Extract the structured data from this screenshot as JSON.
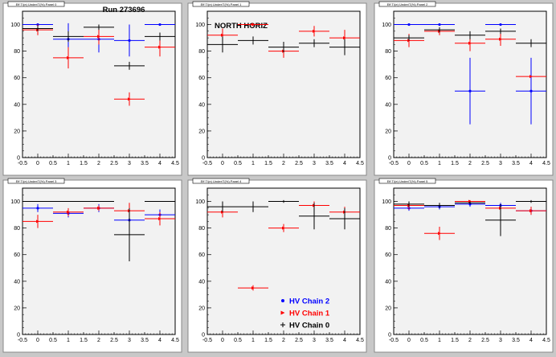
{
  "page": {
    "background": "#c8c8c8"
  },
  "colors": {
    "chain2": "#0000ff",
    "chain1": "#ff0000",
    "chain0": "#000000",
    "frame": "#ffffff",
    "plot_bg": "#f2f2f2"
  },
  "legend": {
    "entries": [
      {
        "label": "HV Chain 2",
        "color": "#0000ff",
        "marker": "circle"
      },
      {
        "label": "HV Chain 1",
        "color": "#ff0000",
        "marker": "arrow"
      },
      {
        "label": "HV Chain 0",
        "color": "#000000",
        "marker": "plus"
      }
    ]
  },
  "chart_data": [
    {
      "type": "scatter",
      "title_box": "Eff T/(e) Under/T(%) Panel 0",
      "annotation": "Run 273696",
      "xlim": [
        -0.5,
        4.5
      ],
      "ylim": [
        0,
        110
      ],
      "xticks": [
        "-0.5",
        "0",
        "0.5",
        "1",
        "1.5",
        "2",
        "2.5",
        "3",
        "3.5",
        "4",
        "4.5"
      ],
      "yticks": [
        "0",
        "20",
        "40",
        "60",
        "80",
        "100"
      ],
      "grid": false,
      "series": [
        {
          "color": "#0000ff",
          "points": [
            {
              "x": 0,
              "y": 100,
              "ey": 0
            },
            {
              "x": 1,
              "y": 89,
              "ey": 12
            },
            {
              "x": 2,
              "y": 89,
              "ey": 10
            },
            {
              "x": 3,
              "y": 88,
              "ey": 12
            },
            {
              "x": 4,
              "y": 100,
              "ey": 0
            }
          ]
        },
        {
          "color": "#ff0000",
          "points": [
            {
              "x": 0,
              "y": 96,
              "ey": 4
            },
            {
              "x": 1,
              "y": 75,
              "ey": 8
            },
            {
              "x": 2,
              "y": 91,
              "ey": 6
            },
            {
              "x": 3,
              "y": 44,
              "ey": 5
            },
            {
              "x": 4,
              "y": 83,
              "ey": 7
            }
          ]
        },
        {
          "color": "#000000",
          "points": [
            {
              "x": 0,
              "y": 97,
              "ey": 2
            },
            {
              "x": 1,
              "y": 91,
              "ey": 4
            },
            {
              "x": 2,
              "y": 98,
              "ey": 2
            },
            {
              "x": 3,
              "y": 69,
              "ey": 3
            },
            {
              "x": 4,
              "y": 91,
              "ey": 3
            }
          ]
        }
      ]
    },
    {
      "type": "scatter",
      "title_box": "Eff T/(e) Under/T(%) Panel 1",
      "annotation": "NORTH HORIZ",
      "xlim": [
        -0.5,
        4.5
      ],
      "ylim": [
        0,
        110
      ],
      "xticks": [
        "-0.5",
        "0",
        "0.5",
        "1",
        "1.5",
        "2",
        "2.5",
        "3",
        "3.5",
        "4",
        "4.5"
      ],
      "yticks": [
        "0",
        "20",
        "40",
        "60",
        "80",
        "100"
      ],
      "grid": false,
      "series": [
        {
          "color": "#ff0000",
          "points": [
            {
              "x": 0,
              "y": 92,
              "ey": 5
            },
            {
              "x": 1,
              "y": 100,
              "ey": 1
            },
            {
              "x": 2,
              "y": 80,
              "ey": 5
            },
            {
              "x": 3,
              "y": 95,
              "ey": 4
            },
            {
              "x": 4,
              "y": 90,
              "ey": 6
            }
          ]
        },
        {
          "color": "#000000",
          "points": [
            {
              "x": 0,
              "y": 85,
              "ey": 6
            },
            {
              "x": 1,
              "y": 88,
              "ey": 3
            },
            {
              "x": 2,
              "y": 83,
              "ey": 4
            },
            {
              "x": 3,
              "y": 86,
              "ey": 3
            },
            {
              "x": 4,
              "y": 83,
              "ey": 6
            }
          ]
        }
      ]
    },
    {
      "type": "scatter",
      "title_box": "Eff T/(e) Under/T(%) Panel 2",
      "annotation": "",
      "xlim": [
        -0.5,
        4.5
      ],
      "ylim": [
        0,
        110
      ],
      "xticks": [
        "-0.5",
        "0",
        "0.5",
        "1",
        "1.5",
        "2",
        "2.5",
        "3",
        "3.5",
        "4",
        "4.5"
      ],
      "yticks": [
        "0",
        "20",
        "40",
        "60",
        "80",
        "100"
      ],
      "grid": false,
      "series": [
        {
          "color": "#0000ff",
          "points": [
            {
              "x": 0,
              "y": 100,
              "ey": 0
            },
            {
              "x": 1,
              "y": 100,
              "ey": 0
            },
            {
              "x": 2,
              "y": 50,
              "ey": 25
            },
            {
              "x": 3,
              "y": 100,
              "ey": 0
            },
            {
              "x": 4,
              "y": 50,
              "ey": 25
            }
          ]
        },
        {
          "color": "#ff0000",
          "points": [
            {
              "x": 0,
              "y": 88,
              "ey": 5
            },
            {
              "x": 1,
              "y": 95,
              "ey": 3
            },
            {
              "x": 2,
              "y": 86,
              "ey": 6
            },
            {
              "x": 3,
              "y": 89,
              "ey": 5
            },
            {
              "x": 4,
              "y": 61,
              "ey": 0
            }
          ]
        },
        {
          "color": "#000000",
          "points": [
            {
              "x": 0,
              "y": 90,
              "ey": 2
            },
            {
              "x": 1,
              "y": 96,
              "ey": 2
            },
            {
              "x": 2,
              "y": 92,
              "ey": 3
            },
            {
              "x": 3,
              "y": 95,
              "ey": 2
            },
            {
              "x": 4,
              "y": 86,
              "ey": 3
            }
          ]
        }
      ]
    },
    {
      "type": "scatter",
      "title_box": "Eff T/(e) Under/T(%) Panel 3",
      "annotation": "",
      "xlim": [
        -0.5,
        4.5
      ],
      "ylim": [
        0,
        110
      ],
      "xticks": [
        "-0.5",
        "0",
        "0.5",
        "1",
        "1.5",
        "2",
        "2.5",
        "3",
        "3.5",
        "4",
        "4.5"
      ],
      "yticks": [
        "0",
        "20",
        "40",
        "60",
        "80",
        "100"
      ],
      "grid": false,
      "series": [
        {
          "color": "#0000ff",
          "points": [
            {
              "x": 0,
              "y": 95,
              "ey": 3
            },
            {
              "x": 1,
              "y": 91,
              "ey": 3
            },
            {
              "x": 2,
              "y": 95,
              "ey": 3
            },
            {
              "x": 3,
              "y": 86,
              "ey": 10
            },
            {
              "x": 4,
              "y": 90,
              "ey": 4
            }
          ]
        },
        {
          "color": "#ff0000",
          "points": [
            {
              "x": 0,
              "y": 85,
              "ey": 5
            },
            {
              "x": 1,
              "y": 92,
              "ey": 3
            },
            {
              "x": 2,
              "y": 95,
              "ey": 2
            },
            {
              "x": 3,
              "y": 93,
              "ey": 6
            },
            {
              "x": 4,
              "y": 87,
              "ey": 5
            }
          ]
        },
        {
          "color": "#000000",
          "points": [
            {
              "x": 0,
              "y": 100,
              "ey": 0
            },
            {
              "x": 1,
              "y": 100,
              "ey": 0
            },
            {
              "x": 2,
              "y": 100,
              "ey": 0
            },
            {
              "x": 3,
              "y": 75,
              "ey": 20
            },
            {
              "x": 4,
              "y": 100,
              "ey": 0
            }
          ]
        }
      ]
    },
    {
      "type": "scatter",
      "title_box": "Eff T/(e) Under/T(%) Panel 4",
      "annotation": "",
      "xlim": [
        -0.5,
        4.5
      ],
      "ylim": [
        0,
        110
      ],
      "xticks": [
        "-0.5",
        "0",
        "0.5",
        "1",
        "1.5",
        "2",
        "2.5",
        "3",
        "3.5",
        "4",
        "4.5"
      ],
      "yticks": [
        "0",
        "20",
        "40",
        "60",
        "80",
        "100"
      ],
      "grid": false,
      "legend_here": true,
      "series": [
        {
          "color": "#ff0000",
          "points": [
            {
              "x": 0,
              "y": 92,
              "ey": 4
            },
            {
              "x": 1,
              "y": 35,
              "ey": 2
            },
            {
              "x": 2,
              "y": 80,
              "ey": 3
            },
            {
              "x": 3,
              "y": 97,
              "ey": 3
            },
            {
              "x": 4,
              "y": 92,
              "ey": 4
            }
          ]
        },
        {
          "color": "#000000",
          "points": [
            {
              "x": 0,
              "y": 96,
              "ey": 4
            },
            {
              "x": 1,
              "y": 96,
              "ey": 4
            },
            {
              "x": 2,
              "y": 100,
              "ey": 1
            },
            {
              "x": 3,
              "y": 89,
              "ey": 10
            },
            {
              "x": 4,
              "y": 87,
              "ey": 8
            }
          ]
        }
      ]
    },
    {
      "type": "scatter",
      "title_box": "Eff T/(e) Under/T(%) Panel 5",
      "annotation": "",
      "xlim": [
        -0.5,
        4.5
      ],
      "ylim": [
        0,
        110
      ],
      "xticks": [
        "-0.5",
        "0",
        "0.5",
        "1",
        "1.5",
        "2",
        "2.5",
        "3",
        "3.5",
        "4",
        "4.5"
      ],
      "yticks": [
        "0",
        "20",
        "40",
        "60",
        "80",
        "100"
      ],
      "grid": false,
      "series": [
        {
          "color": "#0000ff",
          "points": [
            {
              "x": 0,
              "y": 95,
              "ey": 2
            },
            {
              "x": 1,
              "y": 96,
              "ey": 2
            },
            {
              "x": 2,
              "y": 98,
              "ey": 2
            },
            {
              "x": 3,
              "y": 97,
              "ey": 2
            },
            {
              "x": 4,
              "y": 93,
              "ey": 3
            }
          ]
        },
        {
          "color": "#ff0000",
          "points": [
            {
              "x": 0,
              "y": 97,
              "ey": 3
            },
            {
              "x": 1,
              "y": 76,
              "ey": 5
            },
            {
              "x": 2,
              "y": 100,
              "ey": 1
            },
            {
              "x": 3,
              "y": 95,
              "ey": 3
            },
            {
              "x": 4,
              "y": 93,
              "ey": 3
            }
          ]
        },
        {
          "color": "#000000",
          "points": [
            {
              "x": 0,
              "y": 98,
              "ey": 2
            },
            {
              "x": 1,
              "y": 97,
              "ey": 2
            },
            {
              "x": 2,
              "y": 99,
              "ey": 1
            },
            {
              "x": 3,
              "y": 86,
              "ey": 12
            },
            {
              "x": 4,
              "y": 100,
              "ey": 1
            }
          ]
        }
      ]
    }
  ]
}
